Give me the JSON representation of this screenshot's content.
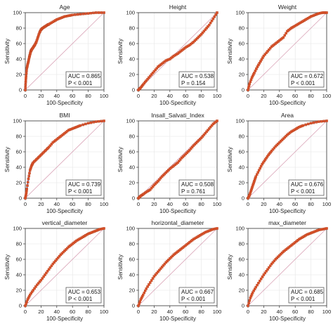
{
  "axis": {
    "xlabel": "100-Specificity",
    "ylabel": "Sensitivity",
    "ticks": [
      "0",
      "20",
      "40",
      "60",
      "80",
      "100"
    ]
  },
  "colors": {
    "curve": "#3a3aa0",
    "marker": "#d9532a",
    "diagonal": "#d8a0b4",
    "grid": "#e6e6e6"
  },
  "chart_data": [
    {
      "type": "line",
      "title": "Age",
      "auc": "AUC = 0.865",
      "p": "P < 0.001",
      "xlim": [
        0,
        100
      ],
      "ylim": [
        0,
        100
      ],
      "x": [
        0,
        0.5,
        1,
        2,
        3,
        4,
        5,
        6,
        7,
        8,
        10,
        12,
        14,
        16,
        18,
        20,
        22,
        25,
        28,
        30,
        35,
        40,
        45,
        50,
        55,
        60,
        70,
        80,
        90,
        100
      ],
      "y": [
        0,
        10,
        18,
        28,
        33,
        37,
        42,
        46,
        50,
        52,
        55,
        58,
        62,
        68,
        74,
        78,
        80,
        82,
        84,
        85,
        88,
        91,
        93,
        95,
        96,
        97,
        98,
        99,
        100,
        100
      ]
    },
    {
      "type": "line",
      "title": "Height",
      "auc": "AUC = 0.538",
      "p": "P = 0.154",
      "xlim": [
        0,
        100
      ],
      "ylim": [
        0,
        100
      ],
      "x": [
        0,
        3,
        6,
        10,
        15,
        20,
        25,
        30,
        35,
        40,
        45,
        50,
        55,
        60,
        65,
        70,
        75,
        80,
        85,
        90,
        95,
        100
      ],
      "y": [
        0,
        3,
        7,
        12,
        18,
        24,
        30,
        34,
        38,
        40,
        44,
        47,
        51,
        55,
        58,
        62,
        67,
        72,
        78,
        84,
        92,
        100
      ]
    },
    {
      "type": "line",
      "title": "Weight",
      "auc": "AUC = 0.672",
      "p": "P < 0.001",
      "xlim": [
        0,
        100
      ],
      "ylim": [
        0,
        100
      ],
      "x": [
        0,
        2,
        5,
        8,
        12,
        16,
        20,
        25,
        30,
        35,
        40,
        45,
        50,
        55,
        60,
        65,
        70,
        75,
        80,
        85,
        90,
        95,
        100
      ],
      "y": [
        0,
        8,
        16,
        22,
        30,
        37,
        44,
        50,
        56,
        60,
        64,
        68,
        76,
        80,
        83,
        86,
        89,
        92,
        95,
        97,
        99,
        100,
        100
      ]
    },
    {
      "type": "line",
      "title": "BMI",
      "auc": "AUC = 0.739",
      "p": "P < 0.001",
      "xlim": [
        0,
        100
      ],
      "ylim": [
        0,
        100
      ],
      "x": [
        0,
        1,
        2,
        4,
        6,
        8,
        10,
        14,
        18,
        22,
        26,
        30,
        35,
        40,
        45,
        50,
        55,
        60,
        65,
        70,
        80,
        90,
        100
      ],
      "y": [
        0,
        5,
        12,
        25,
        36,
        42,
        46,
        50,
        54,
        58,
        62,
        66,
        72,
        76,
        80,
        84,
        88,
        90,
        92,
        94,
        97,
        99,
        100
      ]
    },
    {
      "type": "line",
      "title": "Insall_Salvati_Index",
      "auc": "AUC = 0.508",
      "p": "P = 0.761",
      "xlim": [
        0,
        100
      ],
      "ylim": [
        0,
        100
      ],
      "x": [
        0,
        3,
        6,
        10,
        15,
        20,
        25,
        30,
        35,
        40,
        45,
        50,
        55,
        60,
        65,
        70,
        75,
        80,
        85,
        90,
        95,
        100
      ],
      "y": [
        0,
        3,
        5,
        8,
        11,
        17,
        22,
        28,
        33,
        38,
        42,
        46,
        52,
        57,
        62,
        68,
        73,
        78,
        84,
        90,
        96,
        100
      ]
    },
    {
      "type": "line",
      "title": "Area",
      "auc": "AUC = 0.676",
      "p": "P < 0.001",
      "xlim": [
        0,
        100
      ],
      "ylim": [
        0,
        100
      ],
      "x": [
        0,
        2,
        4,
        6,
        8,
        10,
        14,
        18,
        22,
        26,
        30,
        35,
        40,
        45,
        50,
        55,
        60,
        65,
        70,
        80,
        90,
        100
      ],
      "y": [
        0,
        4,
        10,
        16,
        22,
        28,
        36,
        44,
        50,
        56,
        61,
        67,
        72,
        77,
        82,
        86,
        89,
        92,
        94,
        97,
        99,
        100
      ]
    },
    {
      "type": "line",
      "title": "vertical_diameter",
      "auc": "AUC = 0.653",
      "p": "P < 0.001",
      "xlim": [
        0,
        100
      ],
      "ylim": [
        0,
        100
      ],
      "x": [
        0,
        3,
        6,
        10,
        15,
        20,
        25,
        30,
        35,
        40,
        45,
        50,
        55,
        60,
        65,
        70,
        75,
        80,
        85,
        90,
        95,
        100
      ],
      "y": [
        0,
        8,
        14,
        20,
        27,
        33,
        40,
        47,
        54,
        60,
        66,
        71,
        76,
        80,
        84,
        87,
        90,
        93,
        95,
        97,
        99,
        100
      ]
    },
    {
      "type": "line",
      "title": "horizontal_diameter",
      "auc": "AUC = 0.667",
      "p": "P < 0.001",
      "xlim": [
        0,
        100
      ],
      "ylim": [
        0,
        100
      ],
      "x": [
        0,
        3,
        6,
        10,
        15,
        20,
        25,
        30,
        35,
        40,
        45,
        50,
        55,
        60,
        65,
        70,
        75,
        80,
        85,
        90,
        95,
        100
      ],
      "y": [
        0,
        8,
        14,
        22,
        30,
        38,
        44,
        50,
        56,
        61,
        66,
        70,
        74,
        78,
        82,
        86,
        89,
        92,
        95,
        97,
        99,
        100
      ]
    },
    {
      "type": "line",
      "title": "max_diameter",
      "auc": "AUC = 0.685",
      "p": "P < 0.001",
      "xlim": [
        0,
        100
      ],
      "ylim": [
        0,
        100
      ],
      "x": [
        0,
        3,
        6,
        10,
        15,
        20,
        25,
        30,
        35,
        40,
        45,
        50,
        55,
        60,
        65,
        70,
        75,
        80,
        85,
        90,
        95,
        100
      ],
      "y": [
        0,
        10,
        17,
        24,
        32,
        40,
        47,
        54,
        60,
        65,
        70,
        74,
        78,
        82,
        86,
        89,
        92,
        94,
        96,
        98,
        99,
        100
      ]
    }
  ]
}
